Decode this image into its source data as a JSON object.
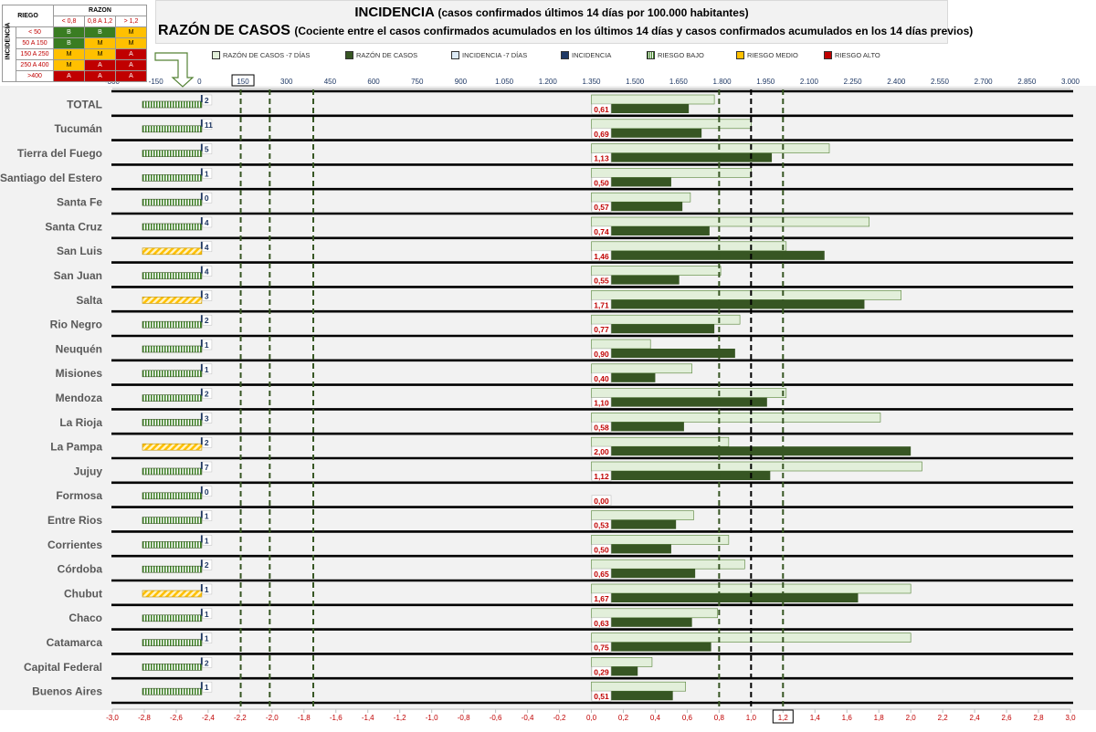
{
  "titles": {
    "incidencia": "INCIDENCIA",
    "incidencia_sub": "(casos confirmados últimos 14 días por 100.000 habitantes)",
    "razon": "RAZÓN DE CASOS",
    "razon_sub": "(Cociente entre el casos confirmados acumulados en los últimos 14 días y casos confirmados acumulados en los 14 días previos)"
  },
  "risk_matrix": {
    "riego_label": "RIEGO",
    "razon_label": "RAZON",
    "incidencia_label": "INCIDENCIA",
    "cols": [
      "< 0,8",
      "0,8 A 1,2",
      "> 1,2"
    ],
    "rows": [
      {
        "label": "< 50",
        "cells": [
          "B",
          "B",
          "M"
        ]
      },
      {
        "label": "50 A 150",
        "cells": [
          "B",
          "M",
          "M"
        ]
      },
      {
        "label": "150 A 250",
        "cells": [
          "M",
          "M",
          "A"
        ]
      },
      {
        "label": "250 A 400",
        "cells": [
          "M",
          "A",
          "A"
        ]
      },
      {
        "label": ">400",
        "cells": [
          "A",
          "A",
          "A"
        ]
      }
    ],
    "cell_colors": {
      "B": "#3a7d22",
      "M": "#ffc000",
      "A": "#c00000"
    }
  },
  "legend": [
    {
      "label": "RAZÓN DE CASOS -7 DÍAS",
      "color": "#e2efda"
    },
    {
      "label": "RAZÓN DE CASOS",
      "color": "#375623"
    },
    {
      "label": "INCIDENCIA -7 DÍAS",
      "color": "#ddebf7"
    },
    {
      "label": "INCIDENCIA",
      "color": "#1f3864"
    },
    {
      "label": "RIESGO BAJO",
      "color": "#3a7d22"
    },
    {
      "label": "RIESGO MEDIO",
      "color": "#ffc000"
    },
    {
      "label": "RIESGO ALTO",
      "color": "#c00000"
    }
  ],
  "colors": {
    "razon_prev": "#e2efda",
    "razon": "#375623",
    "incid_box": "#ffffff",
    "risk_bajo": "#3a7d22",
    "risk_medio": "#ffc000",
    "top_axis": "#1f3864",
    "bottom_axis": "#c00000",
    "value_label": "#c00000",
    "row_label": "#595959",
    "bg": "#f2f2f2"
  },
  "chart_data": {
    "type": "bar",
    "orientation": "horizontal",
    "top_axis": {
      "ticks": [
        "-300",
        "-150",
        "0",
        "150",
        "300",
        "450",
        "600",
        "750",
        "900",
        "1.050",
        "1.200",
        "1.350",
        "1.500",
        "1.650",
        "1.800",
        "1.950",
        "2.100",
        "2.250",
        "2.400",
        "2.550",
        "2.700",
        "2.850",
        "3.000"
      ],
      "highlighted": "150"
    },
    "bottom_axis": {
      "range": [
        -3.0,
        3.0
      ],
      "ticks": [
        "-3,0",
        "-2,8",
        "-2,6",
        "-2,4",
        "-2,2",
        "-2,0",
        "-1,8",
        "-1,6",
        "-1,4",
        "-1,2",
        "-1,0",
        "-0,8",
        "-0,6",
        "-0,4",
        "-0,2",
        "0,0",
        "0,2",
        "0,4",
        "0,6",
        "0,8",
        "1,0",
        "1,2",
        "1,4",
        "1,6",
        "1,8",
        "2,0",
        "2,2",
        "2,4",
        "2,6",
        "2,8",
        "3,0"
      ],
      "highlighted": "1,2"
    },
    "reference_lines_razon": [
      0.8,
      1.0,
      1.2
    ],
    "reference_lines_incidencia": [
      150,
      250,
      400
    ],
    "categories": [
      "TOTAL",
      "Tucumán",
      "Tierra del Fuego",
      "Santiago del Estero",
      "Santa Fe",
      "Santa Cruz",
      "San Luis",
      "San Juan",
      "Salta",
      "Rio Negro",
      "Neuquén",
      "Misiones",
      "Mendoza",
      "La Rioja",
      "La Pampa",
      "Jujuy",
      "Formosa",
      "Entre Rios",
      "Corrientes",
      "Córdoba",
      "Chubut",
      "Chaco",
      "Catamarca",
      "Capital Federal",
      "Buenos Aires"
    ],
    "series": [
      {
        "name": "RAZÓN DE CASOS",
        "values": [
          0.61,
          0.69,
          1.13,
          0.5,
          0.57,
          0.74,
          1.46,
          0.55,
          1.71,
          0.77,
          0.9,
          0.4,
          1.1,
          0.58,
          2.0,
          1.12,
          0.0,
          0.53,
          0.5,
          0.65,
          1.67,
          0.63,
          0.75,
          0.29,
          0.51
        ]
      },
      {
        "name": "RAZÓN DE CASOS -7 DÍAS",
        "values": [
          0.77,
          1.0,
          1.49,
          1.0,
          0.62,
          1.74,
          1.22,
          0.81,
          1.94,
          0.93,
          0.37,
          0.63,
          1.22,
          1.81,
          0.86,
          2.07,
          0,
          0.64,
          0.86,
          0.96,
          2.0,
          0.79,
          2.0,
          0.38,
          0.59
        ]
      },
      {
        "name": "INCIDENCIA",
        "values": [
          2,
          11,
          5,
          1,
          0,
          4,
          4,
          4,
          3,
          2,
          1,
          1,
          2,
          3,
          2,
          7,
          0,
          1,
          1,
          2,
          1,
          1,
          1,
          2,
          1
        ]
      }
    ],
    "value_labels": [
      "0,61",
      "0,69",
      "1,13",
      "0,50",
      "0,57",
      "0,74",
      "1,46",
      "0,55",
      "1,71",
      "0,77",
      "0,90",
      "0,40",
      "1,10",
      "0,58",
      "2,00",
      "1,12",
      "0,00",
      "0,53",
      "0,50",
      "0,65",
      "1,67",
      "0,63",
      "0,75",
      "0,29",
      "0,51"
    ],
    "incidencia_labels": [
      "2",
      "11",
      "5",
      "1",
      "0",
      "4",
      "4",
      "4",
      "3",
      "2",
      "1",
      "1",
      "2",
      "3",
      "2",
      "7",
      "0",
      "1",
      "1",
      "2",
      "1",
      "1",
      "1",
      "2",
      "1"
    ],
    "risk_levels": [
      "BAJO",
      "BAJO",
      "BAJO",
      "BAJO",
      "BAJO",
      "BAJO",
      "MEDIO",
      "BAJO",
      "MEDIO",
      "BAJO",
      "BAJO",
      "BAJO",
      "BAJO",
      "BAJO",
      "MEDIO",
      "BAJO",
      "BAJO",
      "BAJO",
      "BAJO",
      "BAJO",
      "MEDIO",
      "BAJO",
      "BAJO",
      "BAJO",
      "BAJO"
    ]
  }
}
